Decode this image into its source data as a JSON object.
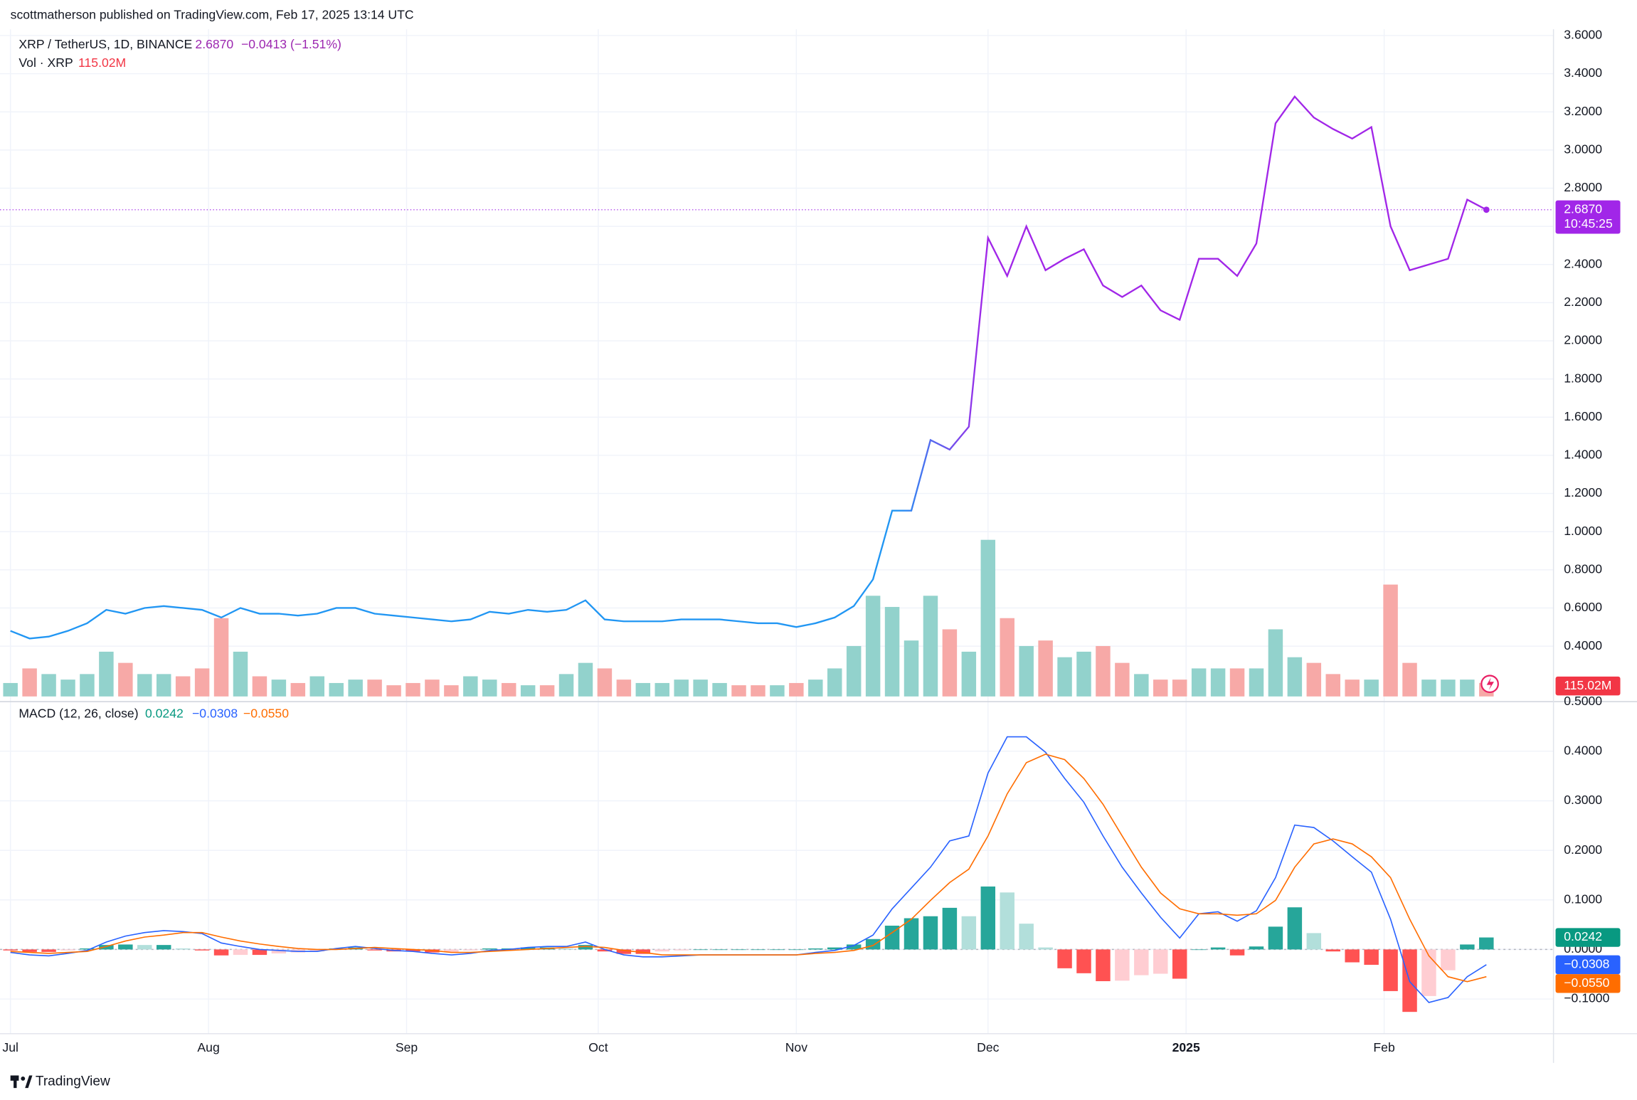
{
  "header": "scottmatherson published on TradingView.com, Feb 17, 2025 13:14 UTC",
  "footer": "TradingView",
  "chart_data": [
    {
      "type": "line",
      "legend": {
        "symbol": "XRP / TetherUS, 1D, BINANCE",
        "price": "2.6870",
        "change": "−0.0413 (−1.51%)",
        "countdown": "10:45:25"
      },
      "x": [
        0,
        3,
        6,
        9,
        12,
        15,
        18,
        21,
        24,
        27,
        30,
        33,
        36,
        39,
        42,
        45,
        48,
        51,
        54,
        57,
        60,
        63,
        66,
        69,
        72,
        75,
        78,
        81,
        84,
        87,
        90,
        93,
        96,
        99,
        102,
        105,
        108,
        111,
        114,
        117,
        120,
        123,
        126,
        129,
        132,
        135,
        138,
        141,
        144,
        147,
        150,
        153,
        156,
        159,
        162,
        165,
        168,
        171,
        174,
        177,
        180,
        183,
        186,
        189,
        192,
        195,
        198,
        201,
        204,
        207,
        210,
        213,
        216,
        219,
        222,
        225,
        228,
        231
      ],
      "xlim": [
        -1.634,
        241.5
      ],
      "xticks": [
        {
          "value": 0,
          "label": "Jul"
        },
        {
          "value": 31,
          "label": "Aug"
        },
        {
          "value": 62,
          "label": "Sep"
        },
        {
          "value": 92,
          "label": "Oct"
        },
        {
          "value": 123,
          "label": "Nov"
        },
        {
          "value": 153,
          "label": "Dec"
        },
        {
          "value": 184,
          "label": "2025",
          "bold": true
        },
        {
          "value": 215,
          "label": "Feb"
        }
      ],
      "ylim": [
        0.109,
        3.633
      ],
      "yticks": [
        {
          "value": 0.4,
          "label": "0.4000"
        },
        {
          "value": 0.6,
          "label": "0.6000"
        },
        {
          "value": 0.8,
          "label": "0.8000"
        },
        {
          "value": 1.0,
          "label": "1.0000"
        },
        {
          "value": 1.2,
          "label": "1.2000"
        },
        {
          "value": 1.4,
          "label": "1.4000"
        },
        {
          "value": 1.6,
          "label": "1.6000"
        },
        {
          "value": 1.8,
          "label": "1.8000"
        },
        {
          "value": 2.0,
          "label": "2.0000"
        },
        {
          "value": 2.2,
          "label": "2.2000"
        },
        {
          "value": 2.4,
          "label": "2.4000"
        },
        {
          "value": 2.6,
          "label": "2.6000"
        },
        {
          "value": 2.8,
          "label": "2.8000"
        },
        {
          "value": 3.0,
          "label": "3.0000"
        },
        {
          "value": 3.2,
          "label": "3.2000"
        },
        {
          "value": 3.4,
          "label": "3.4000"
        },
        {
          "value": 3.6,
          "label": "3.6000"
        }
      ],
      "grid": true,
      "series": [
        {
          "type": "line",
          "colors": [
            "#2196f3",
            "#a126e8"
          ],
          "values": [
            0.48,
            0.44,
            0.45,
            0.48,
            0.52,
            0.59,
            0.57,
            0.6,
            0.61,
            0.6,
            0.59,
            0.55,
            0.6,
            0.57,
            0.57,
            0.56,
            0.57,
            0.6,
            0.6,
            0.57,
            0.56,
            0.55,
            0.54,
            0.53,
            0.54,
            0.58,
            0.57,
            0.59,
            0.58,
            0.59,
            0.64,
            0.54,
            0.53,
            0.53,
            0.53,
            0.54,
            0.54,
            0.54,
            0.53,
            0.52,
            0.52,
            0.5,
            0.52,
            0.55,
            0.61,
            0.75,
            1.11,
            1.11,
            1.48,
            1.43,
            1.55,
            2.54,
            2.34,
            2.6,
            2.37,
            2.43,
            2.48,
            2.29,
            2.23,
            2.29,
            2.16,
            2.11,
            2.43,
            2.43,
            2.34,
            2.51,
            3.14,
            3.28,
            3.17,
            3.11,
            3.06,
            3.12,
            2.6,
            2.37,
            2.4,
            2.43,
            2.74,
            2.687
          ]
        },
        {
          "type": "bar",
          "name": "Vol · XRP",
          "last_label": "115.02M",
          "up_color": "#92d2cc",
          "down_color": "#f7a9a7",
          "label_color": "#f23645",
          "values": [
            114,
            238,
            190,
            143,
            190,
            380,
            285,
            190,
            190,
            171,
            238,
            665,
            380,
            171,
            143,
            114,
            171,
            114,
            143,
            143,
            95,
            114,
            143,
            95,
            171,
            143,
            114,
            95,
            95,
            190,
            285,
            238,
            143,
            114,
            114,
            143,
            143,
            114,
            95,
            95,
            95,
            114,
            143,
            238,
            428,
            855,
            760,
            475,
            855,
            570,
            380,
            1330,
            665,
            428,
            475,
            333,
            380,
            428,
            285,
            190,
            143,
            143,
            238,
            238,
            238,
            238,
            570,
            333,
            285,
            190,
            143,
            143,
            950,
            285,
            143,
            143,
            143,
            115.02
          ]
        }
      ]
    },
    {
      "type": "macd",
      "title": "MACD (12, 26, close)",
      "ylim": [
        -0.17,
        0.5
      ],
      "yticks": [
        {
          "value": -0.1,
          "label": "−0.1000"
        },
        {
          "value": 0,
          "label": "0.0000"
        },
        {
          "value": 0.1,
          "label": "0.1000"
        },
        {
          "value": 0.2,
          "label": "0.2000"
        },
        {
          "value": 0.3,
          "label": "0.3000"
        },
        {
          "value": 0.4,
          "label": "0.4000"
        },
        {
          "value": 0.5,
          "label": "0.5000"
        }
      ],
      "series": [
        {
          "type": "histogram",
          "color": "#089981",
          "colors": [
            "#26a69a",
            "#b2dfdb",
            "#ff5252",
            "#ffcdd2"
          ],
          "values": [
            -0.002,
            -0.005,
            -0.005,
            -0.002,
            0.002,
            0.009,
            0.01,
            0.009,
            0.009,
            0.002,
            -0.002,
            -0.012,
            -0.011,
            -0.011,
            -0.008,
            -0.006,
            -0.004,
            0.002,
            0.004,
            -0.002,
            -0.004,
            -0.004,
            -0.006,
            -0.005,
            -0.002,
            0.002,
            0.002,
            0.004,
            0.004,
            0.002,
            0.009,
            -0.004,
            -0.009,
            -0.009,
            -0.004,
            -0.002,
            0,
            0,
            0,
            0,
            0,
            0,
            0.002,
            0.004,
            0.01,
            0.021,
            0.048,
            0.063,
            0.067,
            0.084,
            0.067,
            0.127,
            0.115,
            0.052,
            0.004,
            -0.038,
            -0.048,
            -0.064,
            -0.063,
            -0.052,
            -0.049,
            -0.059,
            0,
            0.004,
            -0.012,
            0.006,
            0.046,
            0.085,
            0.033,
            -0.004,
            -0.026,
            -0.031,
            -0.084,
            -0.126,
            -0.094,
            -0.042,
            0.01,
            0.0242
          ]
        },
        {
          "type": "line",
          "color": "#2962ff",
          "last_label": "−0.0308",
          "values": [
            -0.006,
            -0.011,
            -0.013,
            -0.008,
            -0.002,
            0.015,
            0.027,
            0.034,
            0.038,
            0.036,
            0.032,
            0.013,
            0.006,
            0,
            -0.002,
            -0.004,
            -0.004,
            0.002,
            0.006,
            0.002,
            -0.002,
            -0.004,
            -0.008,
            -0.011,
            -0.008,
            -0.002,
            0,
            0.004,
            0.006,
            0.006,
            0.015,
            0,
            -0.011,
            -0.015,
            -0.015,
            -0.013,
            -0.011,
            -0.011,
            -0.011,
            -0.011,
            -0.011,
            -0.011,
            -0.006,
            -0.002,
            0.008,
            0.029,
            0.082,
            0.124,
            0.166,
            0.219,
            0.229,
            0.356,
            0.429,
            0.429,
            0.398,
            0.345,
            0.297,
            0.229,
            0.166,
            0.114,
            0.065,
            0.023,
            0.072,
            0.076,
            0.057,
            0.078,
            0.145,
            0.251,
            0.246,
            0.219,
            0.187,
            0.156,
            0.061,
            -0.065,
            -0.107,
            -0.097,
            -0.055,
            -0.0308
          ]
        },
        {
          "type": "line",
          "color": "#ff6d00",
          "last_label": "−0.0550",
          "values": [
            -0.004,
            -0.006,
            -0.008,
            -0.006,
            -0.004,
            0.006,
            0.017,
            0.025,
            0.029,
            0.034,
            0.034,
            0.025,
            0.017,
            0.011,
            0.006,
            0.002,
            0,
            0,
            0.002,
            0.004,
            0.002,
            0,
            -0.002,
            -0.006,
            -0.006,
            -0.004,
            -0.002,
            0,
            0.002,
            0.004,
            0.006,
            0.004,
            -0.002,
            -0.006,
            -0.011,
            -0.011,
            -0.011,
            -0.011,
            -0.011,
            -0.011,
            -0.011,
            -0.011,
            -0.008,
            -0.006,
            -0.002,
            0.008,
            0.034,
            0.061,
            0.099,
            0.135,
            0.162,
            0.229,
            0.314,
            0.377,
            0.394,
            0.383,
            0.345,
            0.293,
            0.229,
            0.166,
            0.114,
            0.082,
            0.072,
            0.072,
            0.069,
            0.072,
            0.099,
            0.166,
            0.213,
            0.223,
            0.213,
            0.187,
            0.145,
            0.061,
            -0.013,
            -0.055,
            -0.065,
            -0.055
          ]
        }
      ]
    }
  ]
}
